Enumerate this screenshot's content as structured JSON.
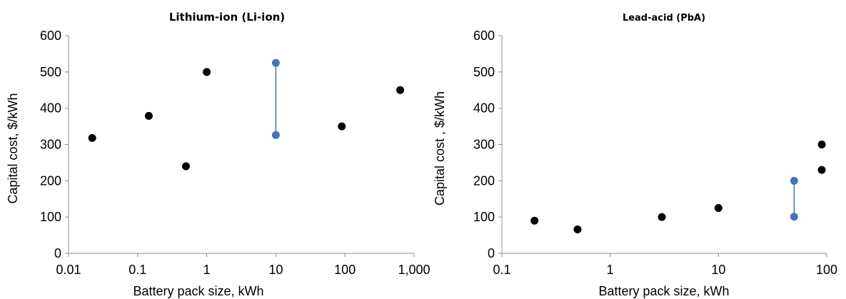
{
  "chart_data": [
    {
      "type": "scatter",
      "title": "Lithium-ion (Li-ion)",
      "xlabel": "Battery pack size, kWh",
      "ylabel": "Capital cost,  $/kWh",
      "x_scale": "log",
      "xlim": [
        0.01,
        1000
      ],
      "ylim": [
        0,
        600
      ],
      "x_ticks": [
        0.01,
        0.1,
        1,
        10,
        100,
        1000
      ],
      "x_tick_labels": [
        "0.01",
        "0.1",
        "1",
        "10",
        "100",
        "1,000"
      ],
      "y_ticks": [
        0,
        100,
        200,
        300,
        400,
        500,
        600
      ],
      "y_tick_labels": [
        "0",
        "100",
        "200",
        "300",
        "400",
        "500",
        "600"
      ],
      "grid": false,
      "legend": "none",
      "point_color": "#000000",
      "range_color": "#4472C4",
      "points": [
        {
          "x": 0.022,
          "y": 318
        },
        {
          "x": 0.145,
          "y": 379
        },
        {
          "x": 0.5,
          "y": 240
        },
        {
          "x": 1,
          "y": 500
        },
        {
          "x": 90,
          "y": 350
        },
        {
          "x": 630,
          "y": 450
        }
      ],
      "ranges": [
        {
          "x": 10,
          "low": 326,
          "high": 525
        }
      ]
    },
    {
      "type": "scatter",
      "title": "Lead-acid (PbA)",
      "xlabel": "Battery pack size, kWh",
      "ylabel": "Capital cost , $/kWh",
      "x_scale": "log",
      "xlim": [
        0.1,
        100
      ],
      "ylim": [
        0,
        600
      ],
      "x_ticks": [
        0.1,
        1,
        10,
        100
      ],
      "x_tick_labels": [
        "0.1",
        "1",
        "10",
        "100"
      ],
      "y_ticks": [
        0,
        100,
        200,
        300,
        400,
        500,
        600
      ],
      "y_tick_labels": [
        "0",
        "100",
        "200",
        "300",
        "400",
        "500",
        "600"
      ],
      "grid": false,
      "legend": "none",
      "point_color": "#000000",
      "range_color": "#4472C4",
      "points": [
        {
          "x": 0.2,
          "y": 90
        },
        {
          "x": 0.5,
          "y": 66
        },
        {
          "x": 3,
          "y": 100
        },
        {
          "x": 10,
          "y": 125
        },
        {
          "x": 90,
          "y": 300
        },
        {
          "x": 90,
          "y": 230
        }
      ],
      "ranges": [
        {
          "x": 50,
          "low": 101,
          "high": 200
        }
      ]
    }
  ]
}
